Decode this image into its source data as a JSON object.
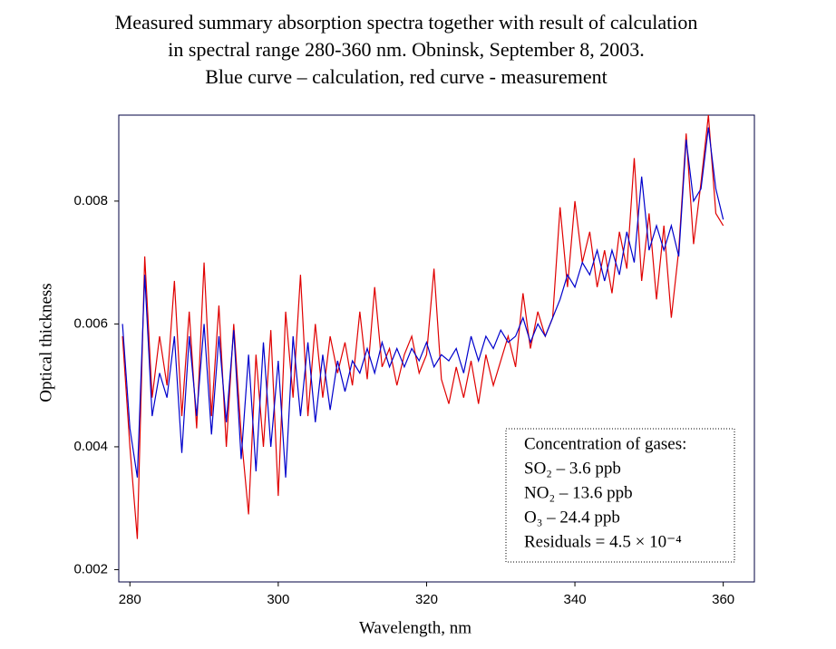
{
  "chart_data": {
    "type": "line",
    "title": [
      "Measured summary absorption spectra together with result of calculation",
      "in spectral range 280-360 nm. Obninsk, September 8, 2003.",
      "Blue curve – calculation, red curve - measurement"
    ],
    "xlabel": "Wavelength, nm",
    "ylabel": "Optical thickness",
    "xlim": [
      278.5,
      364.2
    ],
    "ylim": [
      0.0018,
      0.0094
    ],
    "xticks": [
      280,
      300,
      320,
      340,
      360
    ],
    "yticks": [
      0.002,
      0.004,
      0.006,
      0.008
    ],
    "annotation": [
      "Concentration of gases:",
      "SO₂ – 3.6 ppb",
      "NO₂ – 13.6 ppb",
      "O₃ – 24.4 ppb",
      "Residuals = 4.5 × 10⁻⁴"
    ],
    "x": [
      279,
      280,
      281,
      282,
      283,
      284,
      285,
      286,
      287,
      288,
      289,
      290,
      291,
      292,
      293,
      294,
      295,
      296,
      297,
      298,
      299,
      300,
      301,
      302,
      303,
      304,
      305,
      306,
      307,
      308,
      309,
      310,
      311,
      312,
      313,
      314,
      315,
      316,
      317,
      318,
      319,
      320,
      321,
      322,
      323,
      324,
      325,
      326,
      327,
      328,
      329,
      330,
      331,
      332,
      333,
      334,
      335,
      336,
      337,
      338,
      339,
      340,
      341,
      342,
      343,
      344,
      345,
      346,
      347,
      348,
      349,
      350,
      351,
      352,
      353,
      354,
      355,
      356,
      357,
      358,
      359,
      360
    ],
    "series": [
      {
        "color": "#e00000",
        "values": [
          0.0058,
          0.004,
          0.0025,
          0.0071,
          0.0048,
          0.0058,
          0.005,
          0.0067,
          0.0045,
          0.0062,
          0.0043,
          0.007,
          0.0045,
          0.0063,
          0.004,
          0.006,
          0.0042,
          0.0029,
          0.0055,
          0.004,
          0.0059,
          0.0032,
          0.0062,
          0.0048,
          0.0068,
          0.0045,
          0.006,
          0.0048,
          0.0058,
          0.0052,
          0.0057,
          0.005,
          0.0062,
          0.0051,
          0.0066,
          0.0053,
          0.0056,
          0.005,
          0.0055,
          0.0058,
          0.0052,
          0.0055,
          0.0069,
          0.0051,
          0.0047,
          0.0053,
          0.0048,
          0.0054,
          0.0047,
          0.0055,
          0.005,
          0.0054,
          0.0058,
          0.0053,
          0.0065,
          0.0056,
          0.0062,
          0.0058,
          0.0061,
          0.0079,
          0.0066,
          0.008,
          0.007,
          0.0075,
          0.0066,
          0.0072,
          0.0065,
          0.0075,
          0.0069,
          0.0087,
          0.0067,
          0.0078,
          0.0064,
          0.0076,
          0.0061,
          0.0072,
          0.0091,
          0.0073,
          0.0083,
          0.0094,
          0.0078,
          0.0076
        ]
      },
      {
        "color": "#0000cc",
        "values": [
          0.006,
          0.0043,
          0.0035,
          0.0068,
          0.0045,
          0.0052,
          0.0048,
          0.0058,
          0.0039,
          0.0058,
          0.0045,
          0.006,
          0.0042,
          0.0058,
          0.0044,
          0.0059,
          0.0038,
          0.0055,
          0.0036,
          0.0057,
          0.004,
          0.0054,
          0.0035,
          0.0058,
          0.0045,
          0.0057,
          0.0044,
          0.0055,
          0.0046,
          0.0054,
          0.0049,
          0.0054,
          0.0052,
          0.0056,
          0.0052,
          0.0057,
          0.0053,
          0.0056,
          0.0053,
          0.0056,
          0.0054,
          0.0057,
          0.0053,
          0.0055,
          0.0054,
          0.0056,
          0.0052,
          0.0058,
          0.0054,
          0.0058,
          0.0056,
          0.0059,
          0.0057,
          0.0058,
          0.0061,
          0.0057,
          0.006,
          0.0058,
          0.0061,
          0.0064,
          0.0068,
          0.0066,
          0.007,
          0.0068,
          0.0072,
          0.0067,
          0.0072,
          0.0068,
          0.0075,
          0.007,
          0.0084,
          0.0072,
          0.0076,
          0.0072,
          0.0076,
          0.0071,
          0.009,
          0.008,
          0.0082,
          0.0092,
          0.0082,
          0.0077
        ]
      }
    ]
  }
}
